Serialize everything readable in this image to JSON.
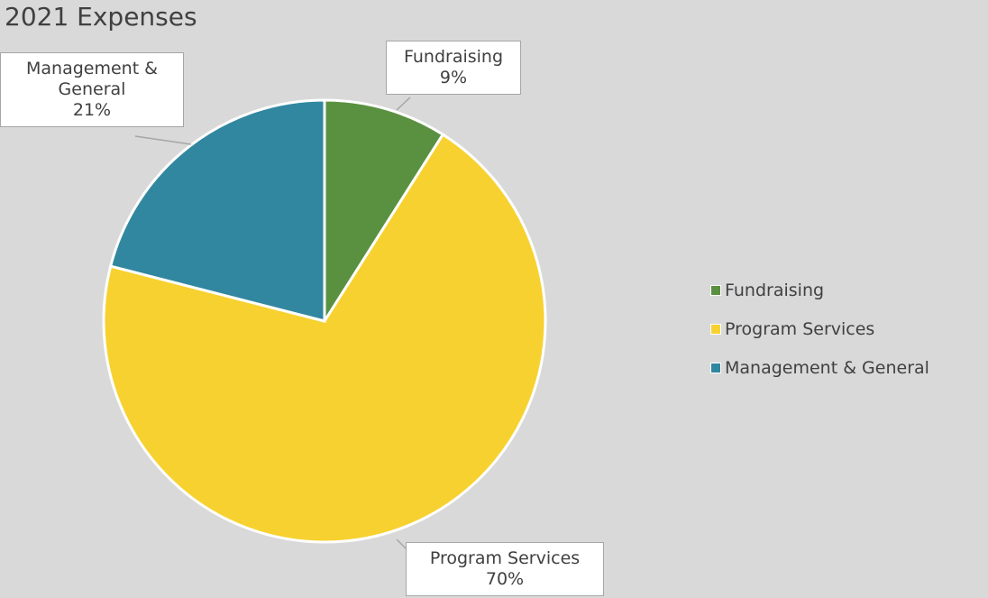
{
  "chart_data": {
    "type": "pie",
    "title": "2021 Expenses",
    "categories": [
      "Fundraising",
      "Program Services",
      "Management & General"
    ],
    "values": [
      9,
      70,
      21
    ],
    "value_labels": [
      "9%",
      "70%",
      "21%"
    ],
    "colors": [
      "#5a9140",
      "#f7d12f",
      "#31879f"
    ],
    "legend": "right"
  }
}
